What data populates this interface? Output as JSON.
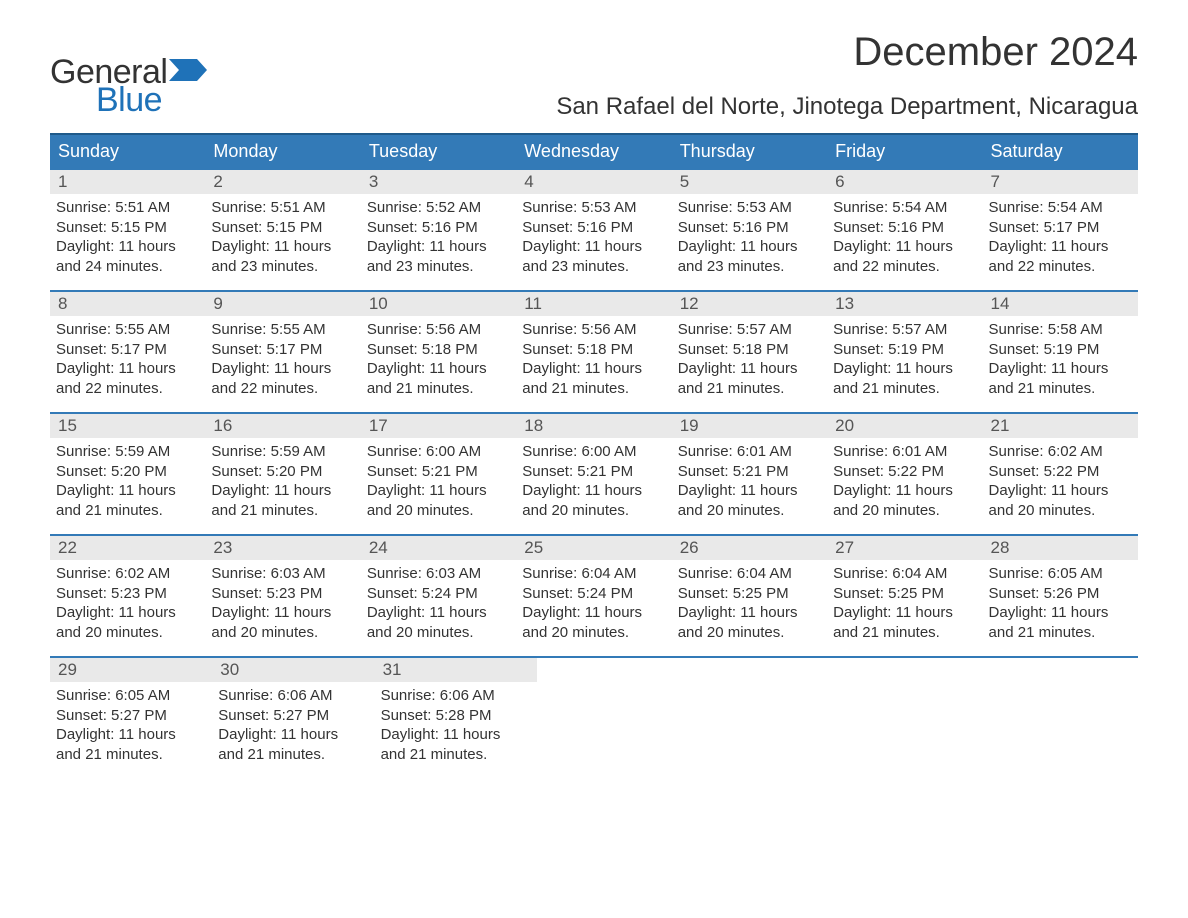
{
  "logo": {
    "general": "General",
    "blue": "Blue"
  },
  "title": "December 2024",
  "location": "San Rafael del Norte, Jinotega Department, Nicaragua",
  "colors": {
    "header_bg": "#337ab7",
    "header_text": "#ffffff",
    "border_accent": "#337ab7",
    "day_band_bg": "#e9e9e9",
    "text": "#333333",
    "logo_blue": "#1f72b8"
  },
  "day_headers": [
    "Sunday",
    "Monday",
    "Tuesday",
    "Wednesday",
    "Thursday",
    "Friday",
    "Saturday"
  ],
  "weeks": [
    [
      {
        "num": "1",
        "sunrise": "Sunrise: 5:51 AM",
        "sunset": "Sunset: 5:15 PM",
        "day1": "Daylight: 11 hours",
        "day2": "and 24 minutes."
      },
      {
        "num": "2",
        "sunrise": "Sunrise: 5:51 AM",
        "sunset": "Sunset: 5:15 PM",
        "day1": "Daylight: 11 hours",
        "day2": "and 23 minutes."
      },
      {
        "num": "3",
        "sunrise": "Sunrise: 5:52 AM",
        "sunset": "Sunset: 5:16 PM",
        "day1": "Daylight: 11 hours",
        "day2": "and 23 minutes."
      },
      {
        "num": "4",
        "sunrise": "Sunrise: 5:53 AM",
        "sunset": "Sunset: 5:16 PM",
        "day1": "Daylight: 11 hours",
        "day2": "and 23 minutes."
      },
      {
        "num": "5",
        "sunrise": "Sunrise: 5:53 AM",
        "sunset": "Sunset: 5:16 PM",
        "day1": "Daylight: 11 hours",
        "day2": "and 23 minutes."
      },
      {
        "num": "6",
        "sunrise": "Sunrise: 5:54 AM",
        "sunset": "Sunset: 5:16 PM",
        "day1": "Daylight: 11 hours",
        "day2": "and 22 minutes."
      },
      {
        "num": "7",
        "sunrise": "Sunrise: 5:54 AM",
        "sunset": "Sunset: 5:17 PM",
        "day1": "Daylight: 11 hours",
        "day2": "and 22 minutes."
      }
    ],
    [
      {
        "num": "8",
        "sunrise": "Sunrise: 5:55 AM",
        "sunset": "Sunset: 5:17 PM",
        "day1": "Daylight: 11 hours",
        "day2": "and 22 minutes."
      },
      {
        "num": "9",
        "sunrise": "Sunrise: 5:55 AM",
        "sunset": "Sunset: 5:17 PM",
        "day1": "Daylight: 11 hours",
        "day2": "and 22 minutes."
      },
      {
        "num": "10",
        "sunrise": "Sunrise: 5:56 AM",
        "sunset": "Sunset: 5:18 PM",
        "day1": "Daylight: 11 hours",
        "day2": "and 21 minutes."
      },
      {
        "num": "11",
        "sunrise": "Sunrise: 5:56 AM",
        "sunset": "Sunset: 5:18 PM",
        "day1": "Daylight: 11 hours",
        "day2": "and 21 minutes."
      },
      {
        "num": "12",
        "sunrise": "Sunrise: 5:57 AM",
        "sunset": "Sunset: 5:18 PM",
        "day1": "Daylight: 11 hours",
        "day2": "and 21 minutes."
      },
      {
        "num": "13",
        "sunrise": "Sunrise: 5:57 AM",
        "sunset": "Sunset: 5:19 PM",
        "day1": "Daylight: 11 hours",
        "day2": "and 21 minutes."
      },
      {
        "num": "14",
        "sunrise": "Sunrise: 5:58 AM",
        "sunset": "Sunset: 5:19 PM",
        "day1": "Daylight: 11 hours",
        "day2": "and 21 minutes."
      }
    ],
    [
      {
        "num": "15",
        "sunrise": "Sunrise: 5:59 AM",
        "sunset": "Sunset: 5:20 PM",
        "day1": "Daylight: 11 hours",
        "day2": "and 21 minutes."
      },
      {
        "num": "16",
        "sunrise": "Sunrise: 5:59 AM",
        "sunset": "Sunset: 5:20 PM",
        "day1": "Daylight: 11 hours",
        "day2": "and 21 minutes."
      },
      {
        "num": "17",
        "sunrise": "Sunrise: 6:00 AM",
        "sunset": "Sunset: 5:21 PM",
        "day1": "Daylight: 11 hours",
        "day2": "and 20 minutes."
      },
      {
        "num": "18",
        "sunrise": "Sunrise: 6:00 AM",
        "sunset": "Sunset: 5:21 PM",
        "day1": "Daylight: 11 hours",
        "day2": "and 20 minutes."
      },
      {
        "num": "19",
        "sunrise": "Sunrise: 6:01 AM",
        "sunset": "Sunset: 5:21 PM",
        "day1": "Daylight: 11 hours",
        "day2": "and 20 minutes."
      },
      {
        "num": "20",
        "sunrise": "Sunrise: 6:01 AM",
        "sunset": "Sunset: 5:22 PM",
        "day1": "Daylight: 11 hours",
        "day2": "and 20 minutes."
      },
      {
        "num": "21",
        "sunrise": "Sunrise: 6:02 AM",
        "sunset": "Sunset: 5:22 PM",
        "day1": "Daylight: 11 hours",
        "day2": "and 20 minutes."
      }
    ],
    [
      {
        "num": "22",
        "sunrise": "Sunrise: 6:02 AM",
        "sunset": "Sunset: 5:23 PM",
        "day1": "Daylight: 11 hours",
        "day2": "and 20 minutes."
      },
      {
        "num": "23",
        "sunrise": "Sunrise: 6:03 AM",
        "sunset": "Sunset: 5:23 PM",
        "day1": "Daylight: 11 hours",
        "day2": "and 20 minutes."
      },
      {
        "num": "24",
        "sunrise": "Sunrise: 6:03 AM",
        "sunset": "Sunset: 5:24 PM",
        "day1": "Daylight: 11 hours",
        "day2": "and 20 minutes."
      },
      {
        "num": "25",
        "sunrise": "Sunrise: 6:04 AM",
        "sunset": "Sunset: 5:24 PM",
        "day1": "Daylight: 11 hours",
        "day2": "and 20 minutes."
      },
      {
        "num": "26",
        "sunrise": "Sunrise: 6:04 AM",
        "sunset": "Sunset: 5:25 PM",
        "day1": "Daylight: 11 hours",
        "day2": "and 20 minutes."
      },
      {
        "num": "27",
        "sunrise": "Sunrise: 6:04 AM",
        "sunset": "Sunset: 5:25 PM",
        "day1": "Daylight: 11 hours",
        "day2": "and 21 minutes."
      },
      {
        "num": "28",
        "sunrise": "Sunrise: 6:05 AM",
        "sunset": "Sunset: 5:26 PM",
        "day1": "Daylight: 11 hours",
        "day2": "and 21 minutes."
      }
    ],
    [
      {
        "num": "29",
        "sunrise": "Sunrise: 6:05 AM",
        "sunset": "Sunset: 5:27 PM",
        "day1": "Daylight: 11 hours",
        "day2": "and 21 minutes."
      },
      {
        "num": "30",
        "sunrise": "Sunrise: 6:06 AM",
        "sunset": "Sunset: 5:27 PM",
        "day1": "Daylight: 11 hours",
        "day2": "and 21 minutes."
      },
      {
        "num": "31",
        "sunrise": "Sunrise: 6:06 AM",
        "sunset": "Sunset: 5:28 PM",
        "day1": "Daylight: 11 hours",
        "day2": "and 21 minutes."
      },
      null,
      null,
      null,
      null
    ]
  ]
}
